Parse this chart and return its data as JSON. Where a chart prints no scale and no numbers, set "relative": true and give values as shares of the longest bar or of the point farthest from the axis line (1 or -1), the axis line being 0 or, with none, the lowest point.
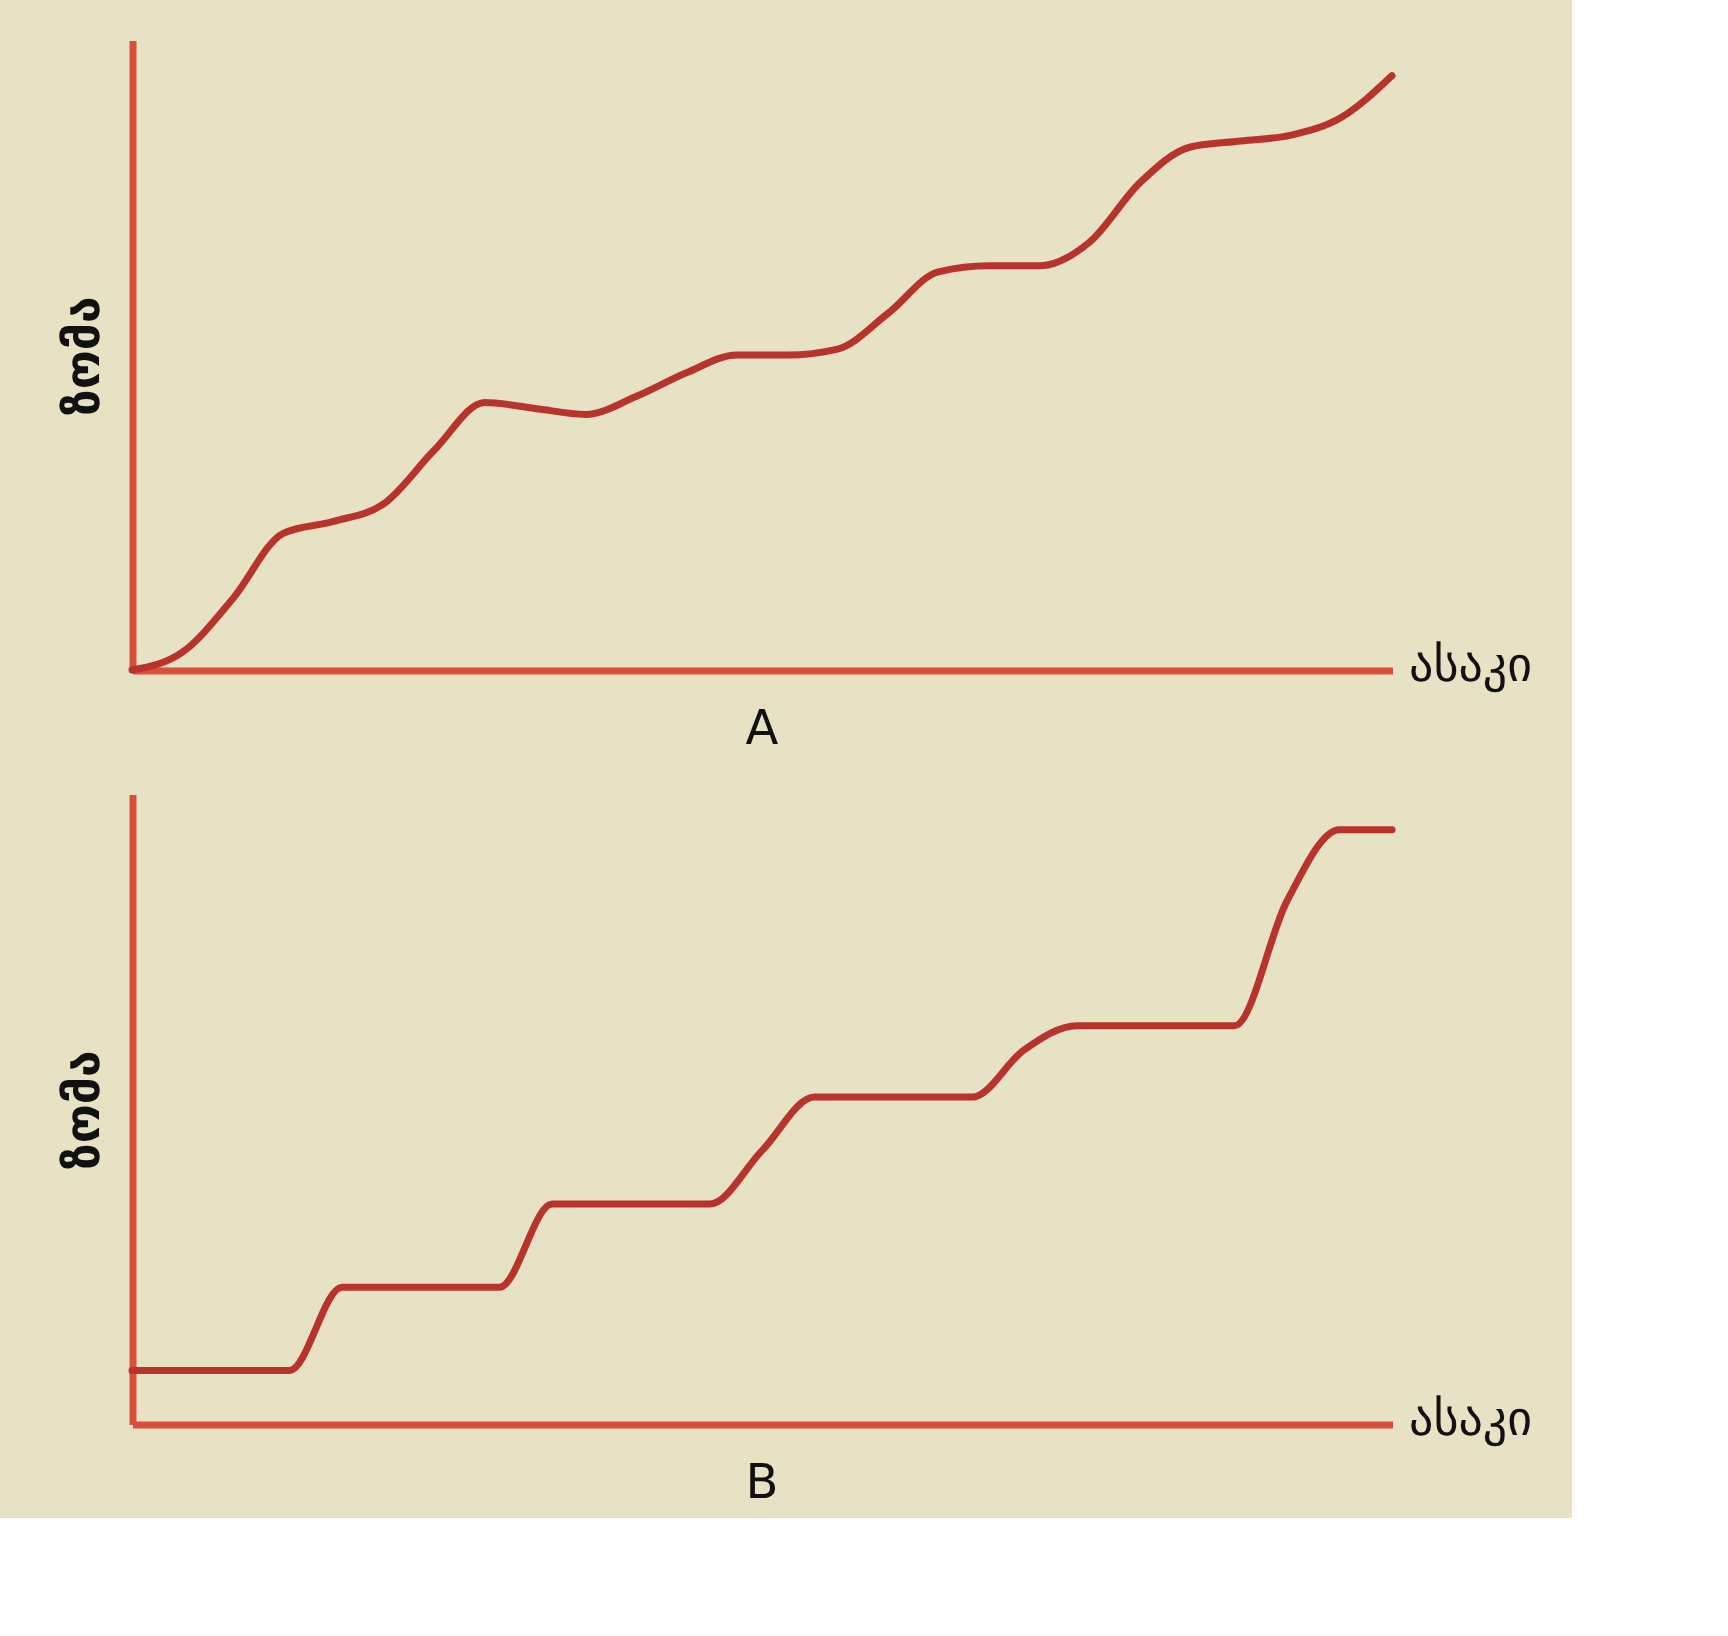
{
  "chart_data": [
    {
      "type": "line",
      "title": "A",
      "xlabel": "ასაკი",
      "ylabel": "ზომა",
      "relative": true,
      "tick_labels": false,
      "grid": false,
      "categories": [
        null,
        null,
        null,
        null,
        null,
        null,
        null,
        null,
        null,
        null,
        null,
        null,
        null,
        null,
        null,
        null,
        null,
        null,
        null,
        null,
        null,
        null,
        null,
        null,
        null,
        null
      ],
      "series": [
        {
          "color": "#b8332b",
          "values": [
            0,
            0.03,
            0.12,
            0.23,
            0.25,
            0.28,
            0.37,
            0.45,
            0.44,
            0.43,
            0.46,
            0.5,
            0.53,
            0.53,
            0.54,
            0.6,
            0.67,
            0.68,
            0.68,
            0.72,
            0.82,
            0.88,
            0.89,
            0.9,
            0.93,
            1
          ]
        }
      ]
    },
    {
      "type": "line",
      "title": "B",
      "xlabel": "ასაკი",
      "ylabel": "ზომა",
      "relative": true,
      "tick_labels": false,
      "grid": false,
      "categories": [
        null,
        null,
        null,
        null,
        null,
        null,
        null,
        null,
        null,
        null,
        null,
        null,
        null,
        null,
        null,
        null,
        null,
        null,
        null,
        null,
        null,
        null,
        null,
        null,
        null
      ],
      "series": [
        {
          "color": "#b8332b",
          "values": [
            0.09,
            0.09,
            0.09,
            0.09,
            0.23,
            0.23,
            0.23,
            0.23,
            0.37,
            0.37,
            0.37,
            0.37,
            0.46,
            0.55,
            0.55,
            0.55,
            0.55,
            0.63,
            0.67,
            0.67,
            0.67,
            0.67,
            0.88,
            1,
            1
          ]
        }
      ]
    }
  ]
}
